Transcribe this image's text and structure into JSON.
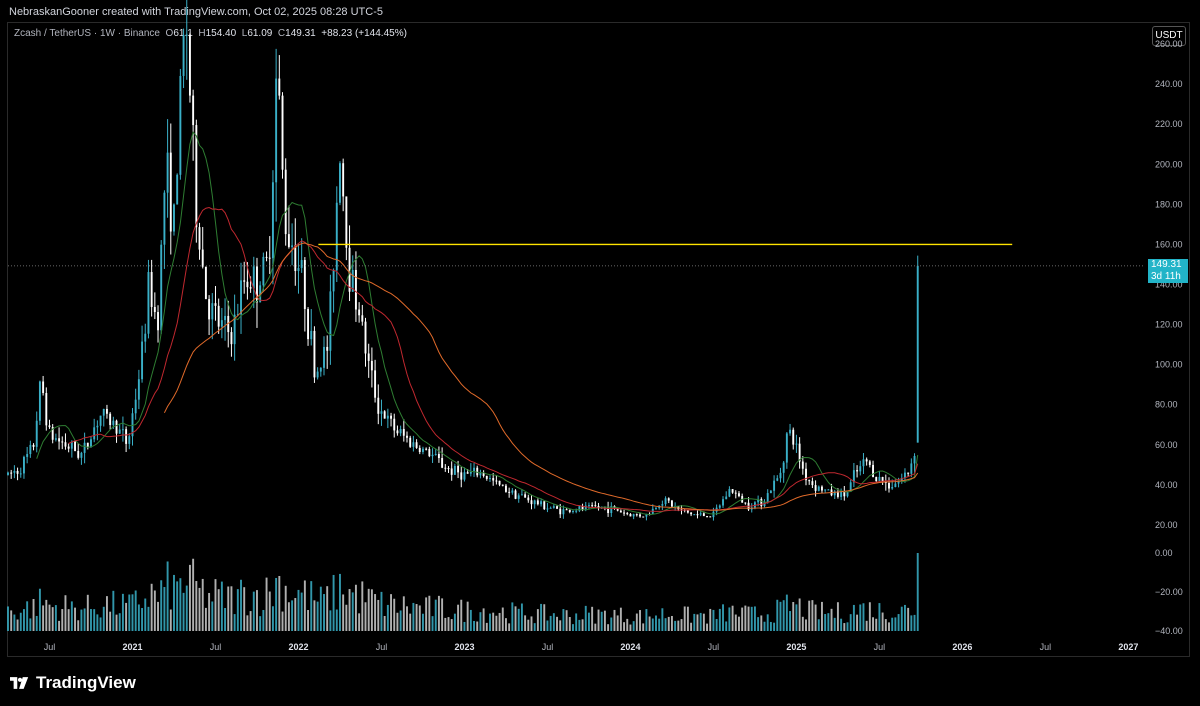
{
  "attribution": "NebraskanGooner created with TradingView.com, Oct 02, 2025 08:28 UTC-5",
  "legend": {
    "symbol": "Zcash / TetherUS · 1W · Binance",
    "o_label": "O",
    "o_value": "61.1",
    "h_label": "H",
    "h_value": "154.40",
    "l_label": "L",
    "l_value": "61.09",
    "c_label": "C",
    "c_value": "149.31",
    "change": "+88.23 (+144.45%)"
  },
  "unit_button": "USDT",
  "price_badge": {
    "price": "149.31",
    "countdown": "3d 11h"
  },
  "branding": "TradingView",
  "colors": {
    "up": "#3ab0c8",
    "down": "#ffffff",
    "ma_slow": "#e06a2a",
    "ma_fast": "#c0282f",
    "ma_mid": "#2e7d32",
    "resistance": "#ffe300",
    "badge": "#22b4c8"
  },
  "chart_data": {
    "type": "candlestick",
    "symbol": "ZEC/USDT",
    "timeframe": "1W",
    "exchange": "Binance",
    "y_ticks": [
      260,
      240,
      220,
      200,
      180,
      160,
      140,
      120,
      100,
      80,
      60,
      40,
      20
    ],
    "y_tick_labels": [
      "260.00",
      "240.00",
      "220.00",
      "200.00",
      "180.00",
      "160.00",
      "140.00",
      "120.00",
      "100.00",
      "80.00",
      "60.00",
      "40.00",
      "20.00"
    ],
    "volume_ticks": [
      0,
      -20,
      -40
    ],
    "volume_tick_labels": [
      "0.00",
      "−20.00",
      "−40.00"
    ],
    "ylim": [
      15,
      270
    ],
    "x_ticks": [
      {
        "label": "Jul",
        "t": 2020.5,
        "year": false
      },
      {
        "label": "2021",
        "t": 2021.0,
        "year": true
      },
      {
        "label": "Jul",
        "t": 2021.5,
        "year": false
      },
      {
        "label": "2022",
        "t": 2022.0,
        "year": true
      },
      {
        "label": "Jul",
        "t": 2022.5,
        "year": false
      },
      {
        "label": "2023",
        "t": 2023.0,
        "year": true
      },
      {
        "label": "Jul",
        "t": 2023.5,
        "year": false
      },
      {
        "label": "2024",
        "t": 2024.0,
        "year": true
      },
      {
        "label": "Jul",
        "t": 2024.5,
        "year": false
      },
      {
        "label": "2025",
        "t": 2025.0,
        "year": true
      },
      {
        "label": "Jul",
        "t": 2025.5,
        "year": false
      },
      {
        "label": "2026",
        "t": 2026.0,
        "year": true
      },
      {
        "label": "Jul",
        "t": 2026.5,
        "year": false
      },
      {
        "label": "2027",
        "t": 2027.0,
        "year": true
      }
    ],
    "xlim": [
      2020.25,
      2027.1
    ],
    "horizontal_line": {
      "value": 160,
      "t_start": 2022.12,
      "t_end": 2026.3
    },
    "last_price": 149.31,
    "price_path": [
      [
        2020.25,
        45
      ],
      [
        2020.32,
        48
      ],
      [
        2020.4,
        58
      ],
      [
        2020.45,
        92
      ],
      [
        2020.5,
        65
      ],
      [
        2020.6,
        60
      ],
      [
        2020.7,
        55
      ],
      [
        2020.8,
        75
      ],
      [
        2020.9,
        70
      ],
      [
        2020.97,
        60
      ],
      [
        2021.05,
        100
      ],
      [
        2021.1,
        140
      ],
      [
        2021.15,
        120
      ],
      [
        2021.2,
        200
      ],
      [
        2021.25,
        170
      ],
      [
        2021.32,
        280
      ],
      [
        2021.38,
        180
      ],
      [
        2021.45,
        130
      ],
      [
        2021.52,
        120
      ],
      [
        2021.6,
        115
      ],
      [
        2021.68,
        145
      ],
      [
        2021.75,
        140
      ],
      [
        2021.82,
        150
      ],
      [
        2021.87,
        250
      ],
      [
        2021.92,
        170
      ],
      [
        2021.97,
        160
      ],
      [
        2022.03,
        140
      ],
      [
        2022.1,
        95
      ],
      [
        2022.18,
        110
      ],
      [
        2022.25,
        210
      ],
      [
        2022.3,
        150
      ],
      [
        2022.36,
        130
      ],
      [
        2022.42,
        100
      ],
      [
        2022.48,
        80
      ],
      [
        2022.55,
        70
      ],
      [
        2022.62,
        65
      ],
      [
        2022.7,
        60
      ],
      [
        2022.8,
        55
      ],
      [
        2022.9,
        48
      ],
      [
        2023.0,
        45
      ],
      [
        2023.1,
        46
      ],
      [
        2023.2,
        40
      ],
      [
        2023.3,
        36
      ],
      [
        2023.4,
        32
      ],
      [
        2023.5,
        29
      ],
      [
        2023.6,
        27
      ],
      [
        2023.7,
        28
      ],
      [
        2023.8,
        29
      ],
      [
        2023.9,
        28
      ],
      [
        2024.0,
        25
      ],
      [
        2024.1,
        25
      ],
      [
        2024.2,
        33
      ],
      [
        2024.3,
        27
      ],
      [
        2024.4,
        25
      ],
      [
        2024.5,
        25
      ],
      [
        2024.6,
        38
      ],
      [
        2024.7,
        30
      ],
      [
        2024.8,
        32
      ],
      [
        2024.9,
        45
      ],
      [
        2024.95,
        68
      ],
      [
        2025.0,
        58
      ],
      [
        2025.05,
        45
      ],
      [
        2025.1,
        40
      ],
      [
        2025.2,
        36
      ],
      [
        2025.3,
        35
      ],
      [
        2025.35,
        45
      ],
      [
        2025.42,
        52
      ],
      [
        2025.48,
        44
      ],
      [
        2025.55,
        40
      ],
      [
        2025.62,
        42
      ],
      [
        2025.68,
        47
      ],
      [
        2025.72,
        61
      ],
      [
        2025.74,
        149.31
      ]
    ]
  }
}
